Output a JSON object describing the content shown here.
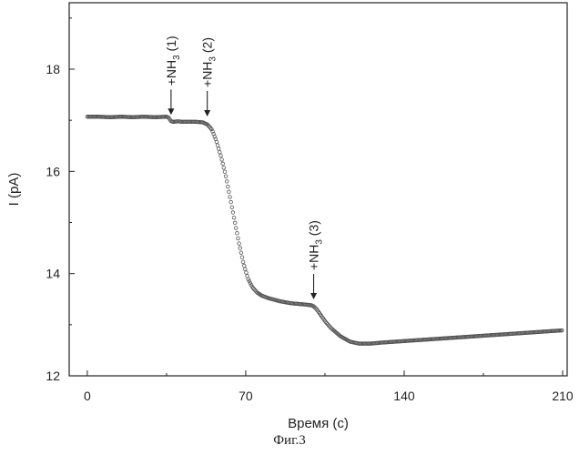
{
  "chart_data": {
    "type": "scatter",
    "xlabel": "Время (с)",
    "ylabel": "I (pA)",
    "xlim": [
      -8,
      212
    ],
    "ylim": [
      12,
      19.3
    ],
    "xticks": [
      0,
      70,
      140,
      210
    ],
    "yticks": [
      12,
      14,
      16,
      18
    ],
    "grid": false,
    "marker": "open-circle",
    "marker_color": "#555555",
    "series": [
      {
        "points": [
          [
            0,
            17.07
          ],
          [
            5,
            17.07
          ],
          [
            10,
            17.06
          ],
          [
            15,
            17.07
          ],
          [
            20,
            17.06
          ],
          [
            25,
            17.07
          ],
          [
            30,
            17.06
          ],
          [
            35,
            17.07
          ],
          [
            36,
            17.05
          ],
          [
            37,
            16.98
          ],
          [
            38,
            16.97
          ],
          [
            40,
            16.98
          ],
          [
            42,
            16.97
          ],
          [
            45,
            16.97
          ],
          [
            48,
            16.97
          ],
          [
            51,
            16.96
          ],
          [
            53,
            16.92
          ],
          [
            55,
            16.82
          ],
          [
            57,
            16.6
          ],
          [
            59,
            16.3
          ],
          [
            61,
            15.95
          ],
          [
            63,
            15.5
          ],
          [
            65,
            15.05
          ],
          [
            67,
            14.6
          ],
          [
            69,
            14.2
          ],
          [
            71,
            13.9
          ],
          [
            73,
            13.73
          ],
          [
            75,
            13.63
          ],
          [
            77,
            13.57
          ],
          [
            80,
            13.52
          ],
          [
            85,
            13.46
          ],
          [
            90,
            13.42
          ],
          [
            95,
            13.4
          ],
          [
            99,
            13.38
          ],
          [
            100,
            13.36
          ],
          [
            101,
            13.32
          ],
          [
            103,
            13.2
          ],
          [
            105,
            13.07
          ],
          [
            108,
            12.92
          ],
          [
            112,
            12.77
          ],
          [
            116,
            12.67
          ],
          [
            120,
            12.63
          ],
          [
            125,
            12.63
          ],
          [
            130,
            12.65
          ],
          [
            140,
            12.68
          ],
          [
            150,
            12.71
          ],
          [
            160,
            12.74
          ],
          [
            170,
            12.77
          ],
          [
            180,
            12.8
          ],
          [
            190,
            12.83
          ],
          [
            200,
            12.86
          ],
          [
            210,
            12.89
          ]
        ]
      }
    ],
    "annotations": [
      {
        "prefix": "+NH",
        "sub": "3",
        "suffix": " (1)",
        "x": 37,
        "y": 16.98
      },
      {
        "prefix": "+NH",
        "sub": "3",
        "suffix": " (2)",
        "x": 53,
        "y": 16.95
      },
      {
        "prefix": "+NH",
        "sub": "3",
        "suffix": " (3)",
        "x": 100,
        "y": 13.37
      }
    ]
  },
  "caption": "Фиг.3"
}
